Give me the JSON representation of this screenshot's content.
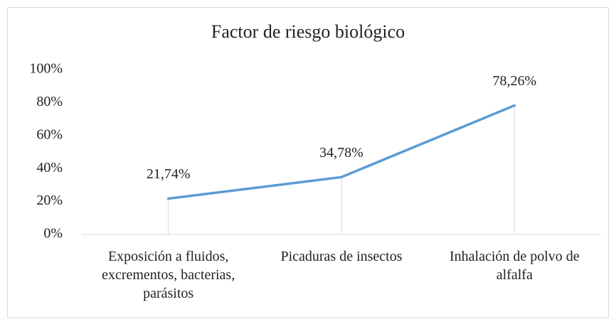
{
  "chart_data": {
    "type": "line",
    "title": "Factor de riesgo biológico",
    "categories": [
      "Exposición a fluidos, excrementos, bacterias, parásitos",
      "Picaduras de insectos",
      "Inhalación de polvo de alfalfa"
    ],
    "values": [
      21.74,
      34.78,
      78.26
    ],
    "value_labels": [
      "21,74%",
      "34,78%",
      "78,26%"
    ],
    "color": "#5b9bd5",
    "ylim": [
      0,
      100
    ],
    "yticks": [
      {
        "value": 0,
        "label": "0%"
      },
      {
        "value": 20,
        "label": "20%"
      },
      {
        "value": 40,
        "label": "40%"
      },
      {
        "value": 60,
        "label": "60%"
      },
      {
        "value": 80,
        "label": "80%"
      },
      {
        "value": 100,
        "label": "100%"
      }
    ],
    "drop_lines": true
  }
}
